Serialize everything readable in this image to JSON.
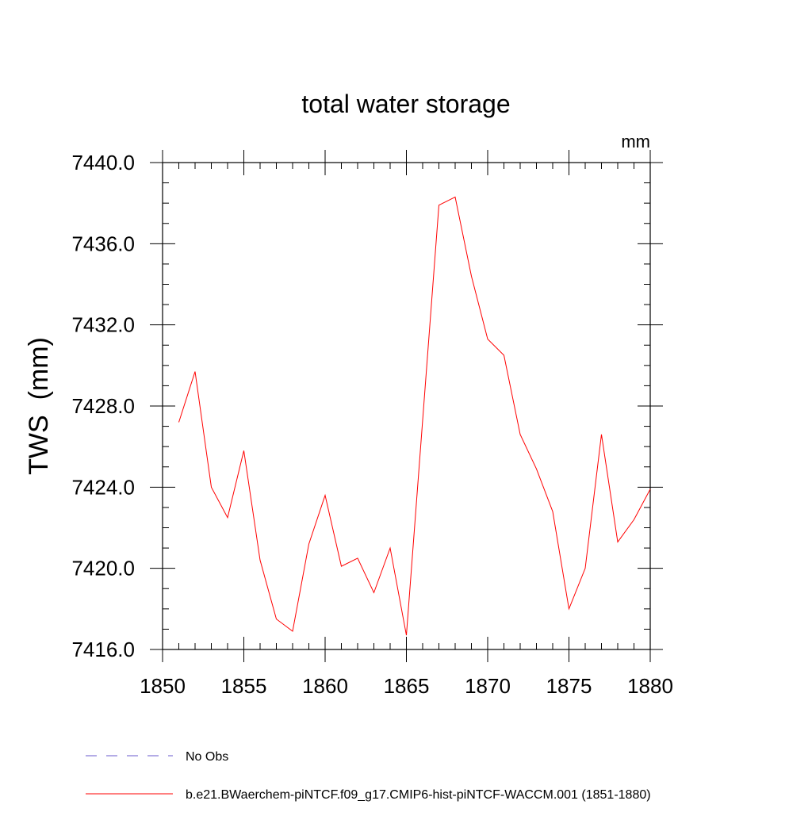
{
  "chart_data": {
    "type": "line",
    "title": "total water storage",
    "units_label": "mm",
    "ylabel": "TWS  (mm)",
    "xlabel": "",
    "xlim": [
      1850,
      1880
    ],
    "ylim": [
      7416.0,
      7440.0
    ],
    "x_ticks": [
      1850,
      1855,
      1860,
      1865,
      1870,
      1875,
      1880
    ],
    "x_tick_labels": [
      "1850",
      "1855",
      "1860",
      "1865",
      "1870",
      "1875",
      "1880"
    ],
    "x_minor_step": 1,
    "y_ticks": [
      7416.0,
      7420.0,
      7424.0,
      7428.0,
      7432.0,
      7436.0,
      7440.0
    ],
    "y_tick_labels": [
      "7416.0",
      "7420.0",
      "7424.0",
      "7428.0",
      "7432.0",
      "7436.0",
      "7440.0"
    ],
    "y_minor_step": 1.0,
    "grid": false,
    "x": [
      1851,
      1852,
      1853,
      1854,
      1855,
      1856,
      1857,
      1858,
      1859,
      1860,
      1861,
      1862,
      1863,
      1864,
      1865,
      1866,
      1867,
      1868,
      1869,
      1870,
      1871,
      1872,
      1873,
      1874,
      1875,
      1876,
      1877,
      1878,
      1879,
      1880
    ],
    "series": [
      {
        "name": "b.e21.BWaerchem-piNTCF.f09_g17.CMIP6-hist-piNTCF-WACCM.001 (1851-1880)",
        "color": "#ff0000",
        "dash": "solid",
        "values": [
          7427.2,
          7429.7,
          7424.0,
          7422.5,
          7425.8,
          7420.4,
          7417.5,
          7416.9,
          7421.2,
          7423.6,
          7420.1,
          7420.5,
          7418.8,
          7421.0,
          7416.7,
          7427.3,
          7437.9,
          7438.3,
          7434.4,
          7431.3,
          7430.5,
          7426.6,
          7424.9,
          7422.8,
          7418.0,
          7420.0,
          7426.6,
          7421.3,
          7422.4,
          7423.9
        ]
      }
    ],
    "legend": {
      "position": "bottom-left",
      "entries": [
        {
          "label": "No Obs",
          "color": "#6a5acd",
          "dash": "dashed"
        },
        {
          "label": "b.e21.BWaerchem-piNTCF.f09_g17.CMIP6-hist-piNTCF-WACCM.001 (1851-1880)",
          "color": "#ff0000",
          "dash": "solid"
        }
      ]
    }
  }
}
